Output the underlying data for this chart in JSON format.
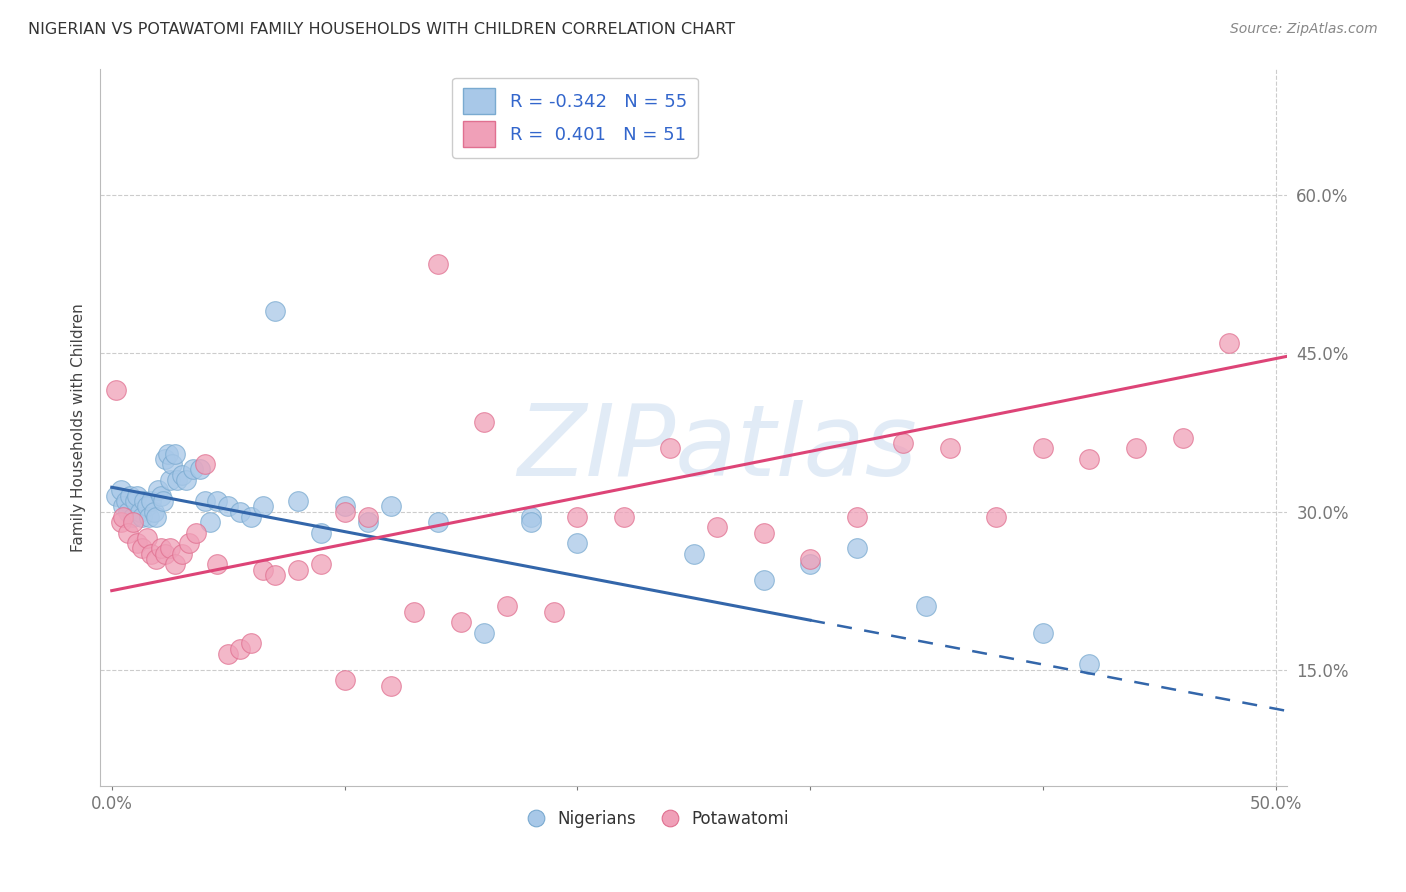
{
  "title": "NIGERIAN VS POTAWATOMI FAMILY HOUSEHOLDS WITH CHILDREN CORRELATION CHART",
  "source": "Source: ZipAtlas.com",
  "ylabel": "Family Households with Children",
  "xlim": [
    -0.005,
    0.505
  ],
  "ylim": [
    0.04,
    0.72
  ],
  "xticks": [
    0.0,
    0.1,
    0.2,
    0.3,
    0.4,
    0.5
  ],
  "xtick_labels": [
    "0.0%",
    "",
    "",
    "",
    "",
    "50.0%"
  ],
  "ytick_labels": [
    "15.0%",
    "30.0%",
    "45.0%",
    "60.0%"
  ],
  "ytick_vals": [
    0.15,
    0.3,
    0.45,
    0.6
  ],
  "watermark": "ZIPatlas",
  "blue_R": "-0.342",
  "blue_N": "55",
  "pink_R": "0.401",
  "pink_N": "51",
  "blue_color": "#A8C8E8",
  "pink_color": "#F0A0B8",
  "blue_edge_color": "#7AAAD0",
  "pink_edge_color": "#E07090",
  "blue_line_color": "#3366AA",
  "pink_line_color": "#DD4477",
  "blue_line_solid_end": 0.3,
  "blue_line_dashed_end": 0.505,
  "blue_intercept": 0.323,
  "blue_slope": -0.42,
  "pink_intercept": 0.225,
  "pink_slope": 0.44,
  "blue_scatter_x": [
    0.002,
    0.004,
    0.005,
    0.006,
    0.007,
    0.008,
    0.009,
    0.01,
    0.011,
    0.012,
    0.013,
    0.014,
    0.015,
    0.016,
    0.017,
    0.018,
    0.019,
    0.02,
    0.021,
    0.022,
    0.023,
    0.024,
    0.025,
    0.026,
    0.027,
    0.028,
    0.03,
    0.032,
    0.035,
    0.038,
    0.04,
    0.042,
    0.045,
    0.05,
    0.055,
    0.06,
    0.065,
    0.07,
    0.08,
    0.09,
    0.1,
    0.11,
    0.12,
    0.14,
    0.16,
    0.18,
    0.2,
    0.25,
    0.28,
    0.3,
    0.32,
    0.35,
    0.4,
    0.42,
    0.18
  ],
  "blue_scatter_y": [
    0.315,
    0.32,
    0.305,
    0.31,
    0.3,
    0.315,
    0.295,
    0.31,
    0.315,
    0.3,
    0.295,
    0.31,
    0.305,
    0.295,
    0.31,
    0.3,
    0.295,
    0.32,
    0.315,
    0.31,
    0.35,
    0.355,
    0.33,
    0.345,
    0.355,
    0.33,
    0.335,
    0.33,
    0.34,
    0.34,
    0.31,
    0.29,
    0.31,
    0.305,
    0.3,
    0.295,
    0.305,
    0.49,
    0.31,
    0.28,
    0.305,
    0.29,
    0.305,
    0.29,
    0.185,
    0.295,
    0.27,
    0.26,
    0.235,
    0.25,
    0.265,
    0.21,
    0.185,
    0.155,
    0.29
  ],
  "pink_scatter_x": [
    0.002,
    0.004,
    0.005,
    0.007,
    0.009,
    0.011,
    0.013,
    0.015,
    0.017,
    0.019,
    0.021,
    0.023,
    0.025,
    0.027,
    0.03,
    0.033,
    0.036,
    0.04,
    0.045,
    0.05,
    0.055,
    0.06,
    0.065,
    0.07,
    0.08,
    0.09,
    0.1,
    0.11,
    0.13,
    0.15,
    0.16,
    0.17,
    0.19,
    0.2,
    0.22,
    0.24,
    0.26,
    0.28,
    0.3,
    0.32,
    0.34,
    0.36,
    0.38,
    0.4,
    0.42,
    0.44,
    0.46,
    0.48,
    0.1,
    0.12,
    0.14
  ],
  "pink_scatter_y": [
    0.415,
    0.29,
    0.295,
    0.28,
    0.29,
    0.27,
    0.265,
    0.275,
    0.26,
    0.255,
    0.265,
    0.26,
    0.265,
    0.25,
    0.26,
    0.27,
    0.28,
    0.345,
    0.25,
    0.165,
    0.17,
    0.175,
    0.245,
    0.24,
    0.245,
    0.25,
    0.3,
    0.295,
    0.205,
    0.195,
    0.385,
    0.21,
    0.205,
    0.295,
    0.295,
    0.36,
    0.285,
    0.28,
    0.255,
    0.295,
    0.365,
    0.36,
    0.295,
    0.36,
    0.35,
    0.36,
    0.37,
    0.46,
    0.14,
    0.135,
    0.535
  ],
  "background_color": "#FFFFFF",
  "grid_color": "#CCCCCC"
}
